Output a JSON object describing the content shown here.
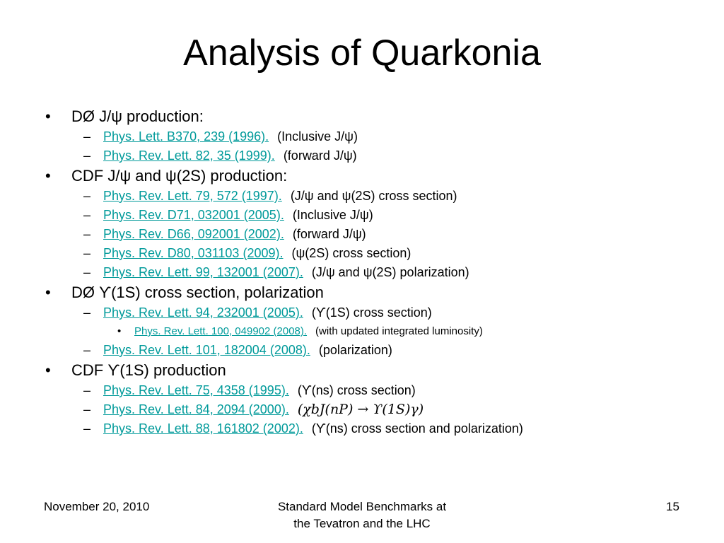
{
  "title": "Analysis of Quarkonia",
  "sections": [
    {
      "heading": "DØ J/ψ production:",
      "items": [
        {
          "link": "Phys. Lett. B370, 239 (1996).",
          "note": "(Inclusive J/ψ)"
        },
        {
          "link": "Phys. Rev. Lett. 82, 35 (1999).",
          "note": "(forward J/ψ)"
        }
      ]
    },
    {
      "heading": "CDF J/ψ and ψ(2S) production:",
      "items": [
        {
          "link": "Phys. Rev. Lett. 79, 572 (1997).",
          "note": "(J/ψ and ψ(2S) cross section)"
        },
        {
          "link": "Phys. Rev. D71, 032001 (2005).",
          "note": "(Inclusive J/ψ)"
        },
        {
          "link": "Phys. Rev. D66, 092001 (2002).",
          "note": "(forward J/ψ)"
        },
        {
          "link": "Phys. Rev. D80, 031103 (2009).",
          "note": "(ψ(2S) cross section)"
        },
        {
          "link": "Phys. Rev. Lett. 99, 132001 (2007).",
          "note": "(J/ψ and ψ(2S) polarization)"
        }
      ]
    },
    {
      "heading": "DØ ϒ(1S) cross section, polarization",
      "items": [
        {
          "link": "Phys. Rev. Lett. 94, 232001 (2005).",
          "note": "(ϒ(1S) cross section)",
          "subitems": [
            {
              "link": "Phys. Rev. Lett. 100, 049902 (2008).",
              "note": "(with updated integrated luminosity)"
            }
          ]
        },
        {
          "link": "Phys. Rev. Lett. 101, 182004 (2008).",
          "note": "(polarization)"
        }
      ]
    },
    {
      "heading": "CDF ϒ(1S) production",
      "items": [
        {
          "link": "Phys. Rev. Lett. 75, 4358 (1995).",
          "note": "(ϒ(ns) cross section)"
        },
        {
          "link": "Phys. Rev. Lett. 84, 2094 (2000).",
          "note": "(χbJ(nP) → ϒ(1S)γ)",
          "math": true
        },
        {
          "link": "Phys. Rev. Lett. 88, 161802 (2002).",
          "note": "(ϒ(ns) cross section and polarization)"
        }
      ]
    }
  ],
  "footer": {
    "date": "November 20, 2010",
    "center": [
      "Standard Model Benchmarks at",
      "the Tevatron and the LHC"
    ],
    "page": "15"
  }
}
